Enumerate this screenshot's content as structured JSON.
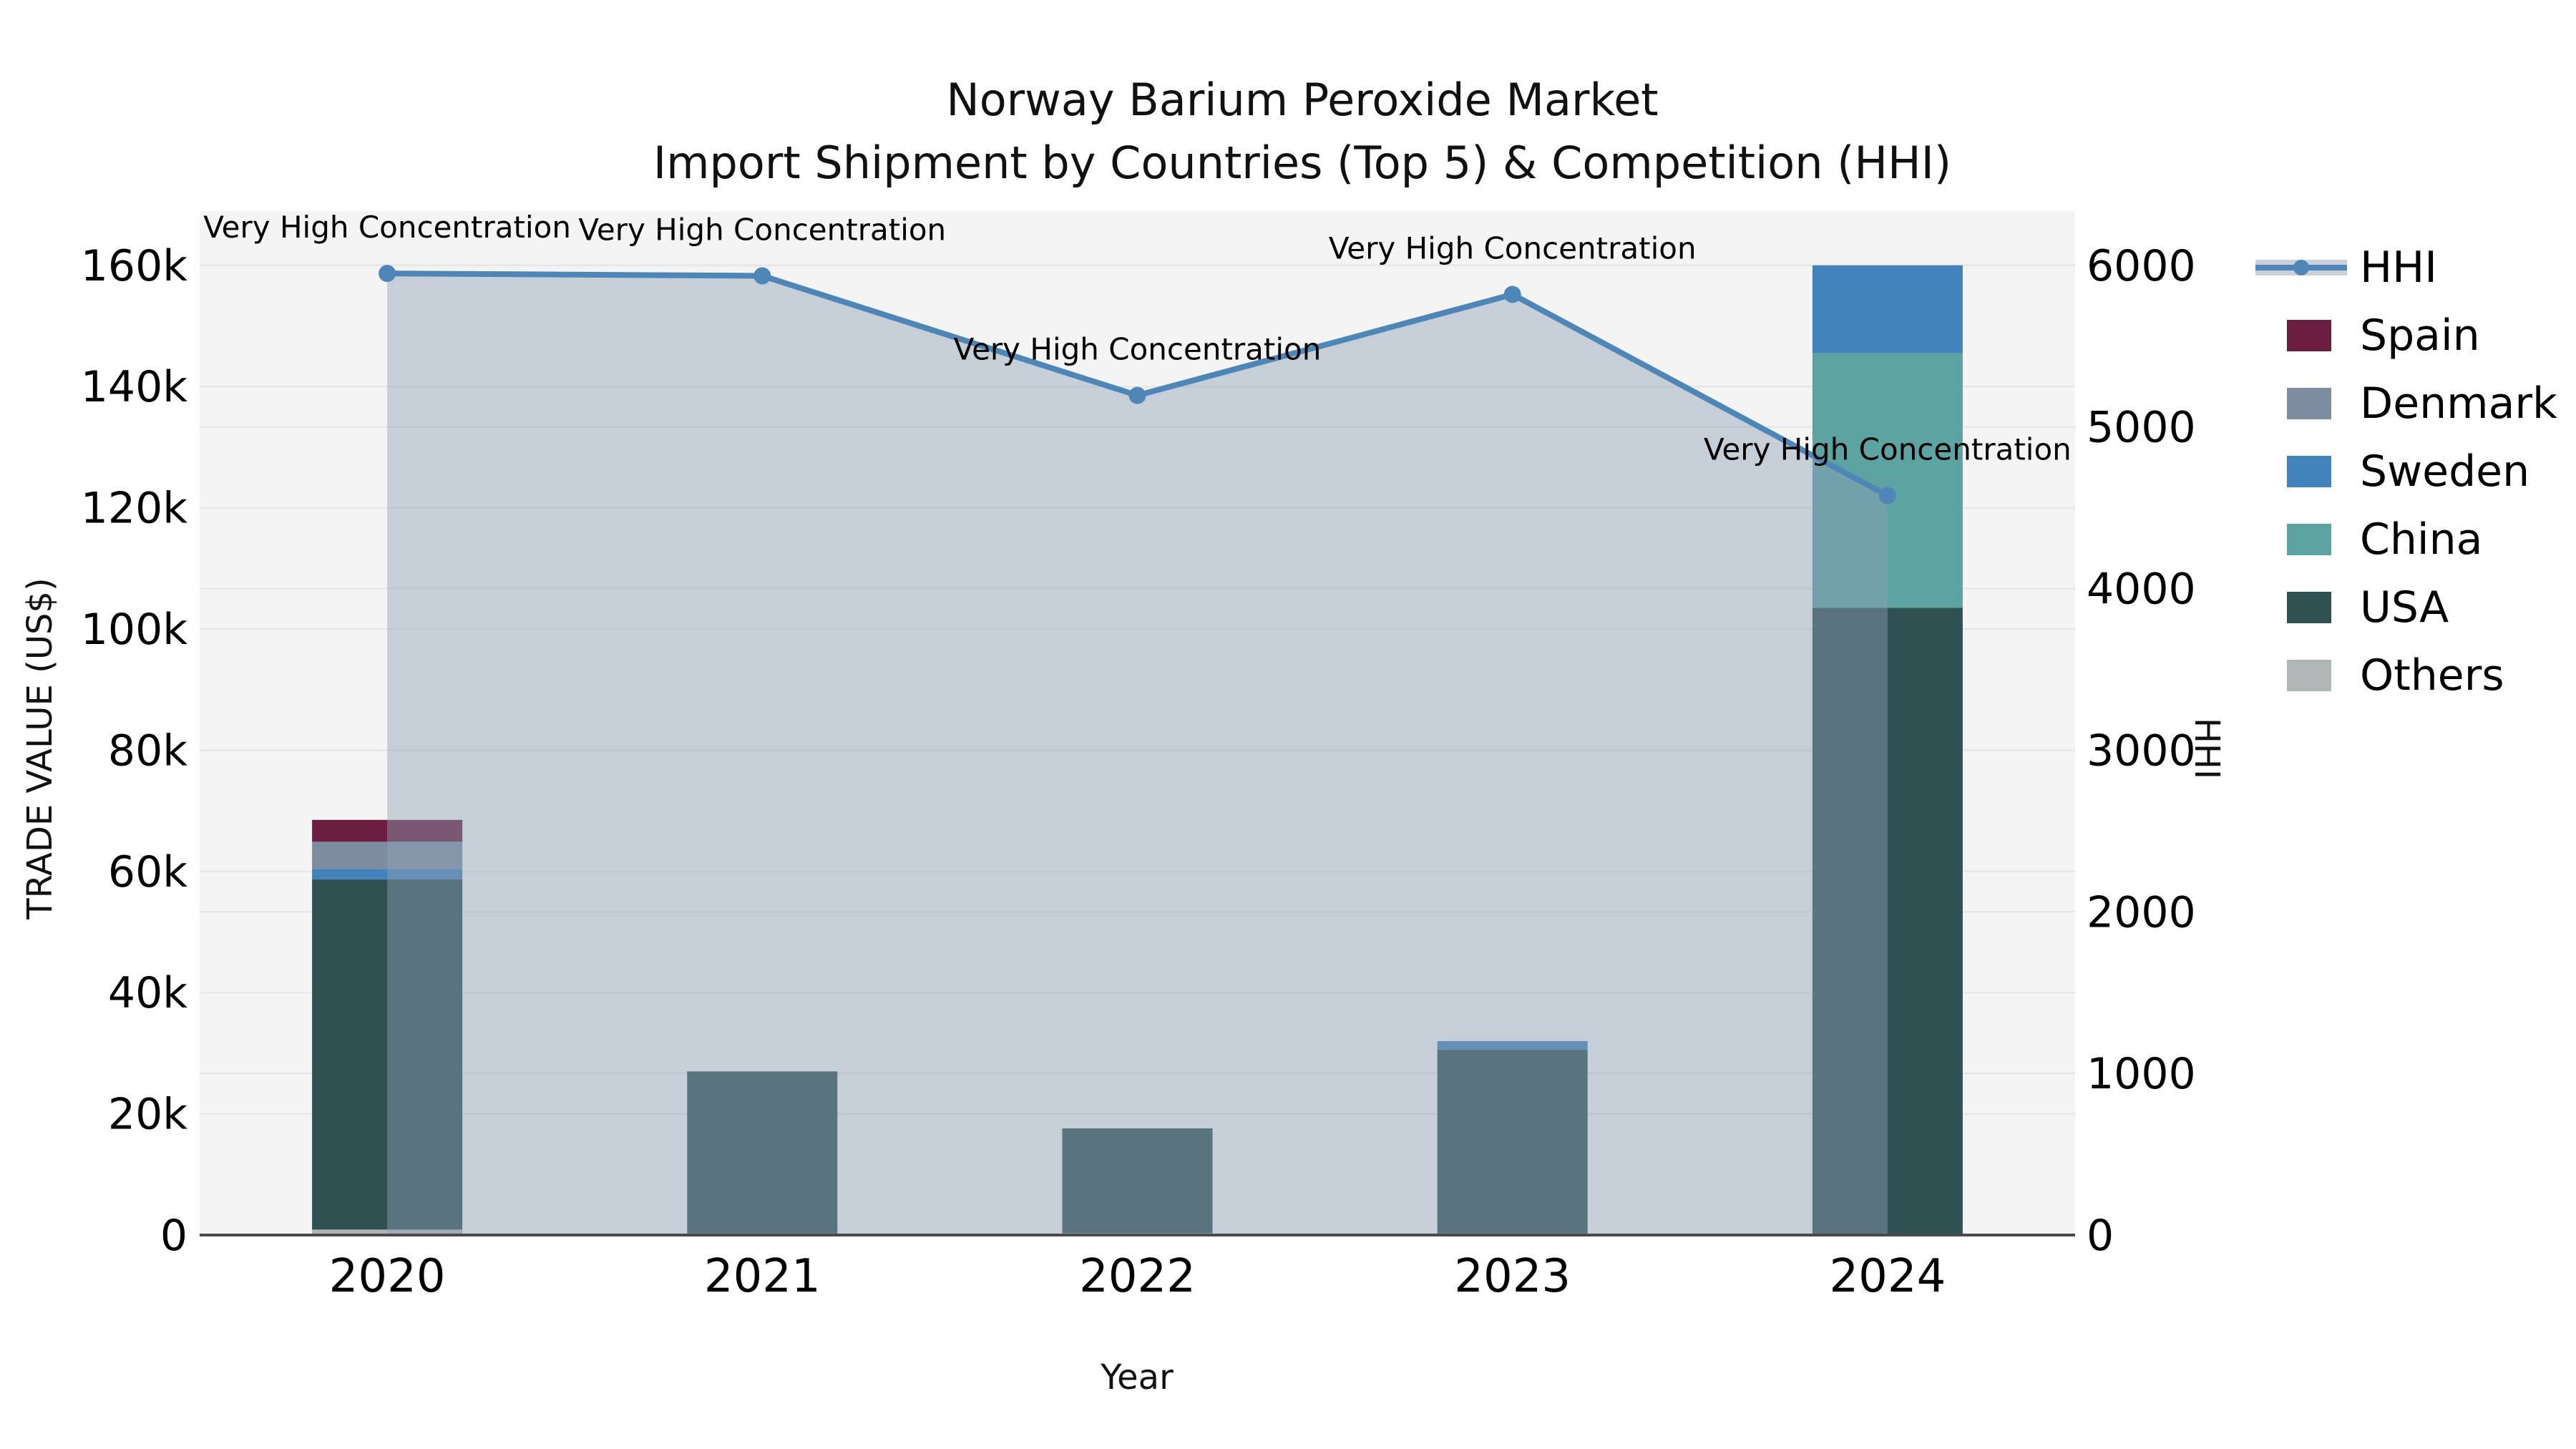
{
  "title": {
    "line1": "Norway Barium Peroxide Market",
    "line2": "Import Shipment by Countries (Top 5) & Competition (HHI)"
  },
  "axes": {
    "left": {
      "label": "TRADE VALUE (US$)",
      "tick_labels": [
        "0",
        "20k",
        "40k",
        "60k",
        "80k",
        "100k",
        "120k",
        "140k",
        "160k"
      ],
      "range": [
        0,
        160000
      ]
    },
    "right": {
      "label": "HHI",
      "tick_labels": [
        "0",
        "1000",
        "2000",
        "3000",
        "4000",
        "5000",
        "6000"
      ],
      "range": [
        0,
        6000
      ]
    },
    "x": {
      "label": "Year",
      "categories": [
        "2020",
        "2021",
        "2022",
        "2023",
        "2024"
      ]
    }
  },
  "legend": {
    "items": [
      {
        "label": "HHI",
        "type": "line",
        "color": "#4e86b8"
      },
      {
        "label": "Spain",
        "type": "swatch",
        "color": "#6b1e3f"
      },
      {
        "label": "Denmark",
        "type": "swatch",
        "color": "#7e8ca0"
      },
      {
        "label": "Sweden",
        "type": "swatch",
        "color": "#4383bb"
      },
      {
        "label": "China",
        "type": "swatch",
        "color": "#5da3a2"
      },
      {
        "label": "USA",
        "type": "swatch",
        "color": "#2f5152"
      },
      {
        "label": "Others",
        "type": "swatch",
        "color": "#b0b5b5"
      }
    ]
  },
  "colors": {
    "plot_background": "#f5f4f4",
    "gridline": "#e4e4e4",
    "axis_spine": "#4a4a4a",
    "hhi_line": "#4e86b8",
    "hhi_fill": "rgba(141,160,181,0.45)"
  },
  "chart_data": {
    "type": "combo-stacked-bar-line",
    "x": [
      "2020",
      "2021",
      "2022",
      "2023",
      "2024"
    ],
    "bar_value_axis": "left",
    "bar_series_bottom_to_top": [
      {
        "name": "Others",
        "color": "#b0b5b5",
        "values": [
          900,
          250,
          300,
          250,
          0
        ]
      },
      {
        "name": "USA",
        "color": "#2f5152",
        "values": [
          57800,
          26750,
          17300,
          30350,
          103500
        ]
      },
      {
        "name": "China",
        "color": "#5da3a2",
        "values": [
          0,
          0,
          0,
          0,
          42000
        ]
      },
      {
        "name": "Sweden",
        "color": "#4383bb",
        "values": [
          1700,
          0,
          0,
          1400,
          14500
        ]
      },
      {
        "name": "Denmark",
        "color": "#7e8ca0",
        "values": [
          4500,
          0,
          0,
          0,
          0
        ]
      },
      {
        "name": "Spain",
        "color": "#6b1e3f",
        "values": [
          3600,
          0,
          0,
          0,
          0
        ]
      }
    ],
    "line_series": {
      "name": "HHI",
      "axis": "right",
      "color": "#4e86b8",
      "values": [
        5950,
        5935,
        5195,
        5820,
        4575
      ],
      "area_fill": true,
      "point_annotations": [
        "Very High Concentration",
        "Very High Concentration",
        "Very High Concentration",
        "Very High Concentration",
        "Very High Concentration"
      ]
    },
    "ylim_left": [
      0,
      160000
    ],
    "ylim_right": [
      0,
      6000
    ],
    "left_tick_step": 20000,
    "right_tick_step": 1000,
    "grid": true,
    "legend_position": "right"
  }
}
